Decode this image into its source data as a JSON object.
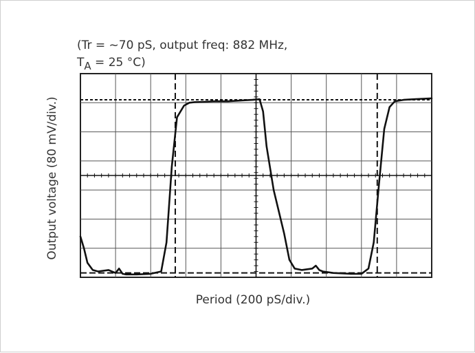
{
  "chart_data": {
    "type": "line",
    "conditions_line1": "(Tr = ~70 pS, output freq: 882 MHz,",
    "conditions_line2_prefix": "T",
    "conditions_line2_sub": "A",
    "conditions_line2_suffix": " = 25 °C)",
    "xlabel": "Period (200 pS/div.)",
    "ylabel": "Output voltage (80 mV/div.)",
    "x_divisions": 10,
    "y_divisions": 7,
    "grid": true,
    "xlim": [
      0,
      10
    ],
    "ylim": [
      0,
      7
    ],
    "reference_levels": {
      "high": 6.1,
      "low": 0.15
    },
    "cursor_positions_x": [
      2.7,
      8.45
    ],
    "series": [
      {
        "x": [
          0,
          0.1,
          0.2,
          0.35,
          0.5,
          0.8,
          1.0,
          1.1,
          1.2,
          1.3,
          1.6,
          2.0,
          2.3,
          2.45,
          2.6,
          2.75,
          2.95,
          3.1,
          3.25,
          3.5,
          3.8,
          4.2,
          4.6,
          4.9,
          5.1,
          5.2,
          5.3,
          5.5,
          5.8,
          5.95,
          6.1,
          6.3,
          6.6,
          6.7,
          6.8,
          6.9,
          7.2,
          7.7,
          8.0,
          8.2,
          8.35,
          8.5,
          8.65,
          8.8,
          8.95,
          9.2,
          9.5,
          10.0
        ],
        "y": [
          1.4,
          1.0,
          0.5,
          0.25,
          0.2,
          0.25,
          0.15,
          0.3,
          0.12,
          0.1,
          0.1,
          0.12,
          0.2,
          1.2,
          3.8,
          5.5,
          5.9,
          6.0,
          6.02,
          6.03,
          6.05,
          6.05,
          6.08,
          6.1,
          6.12,
          5.7,
          4.5,
          3.0,
          1.5,
          0.6,
          0.3,
          0.25,
          0.3,
          0.4,
          0.25,
          0.2,
          0.15,
          0.12,
          0.12,
          0.3,
          1.2,
          3.2,
          5.1,
          5.85,
          6.05,
          6.1,
          6.12,
          6.15
        ]
      }
    ]
  }
}
